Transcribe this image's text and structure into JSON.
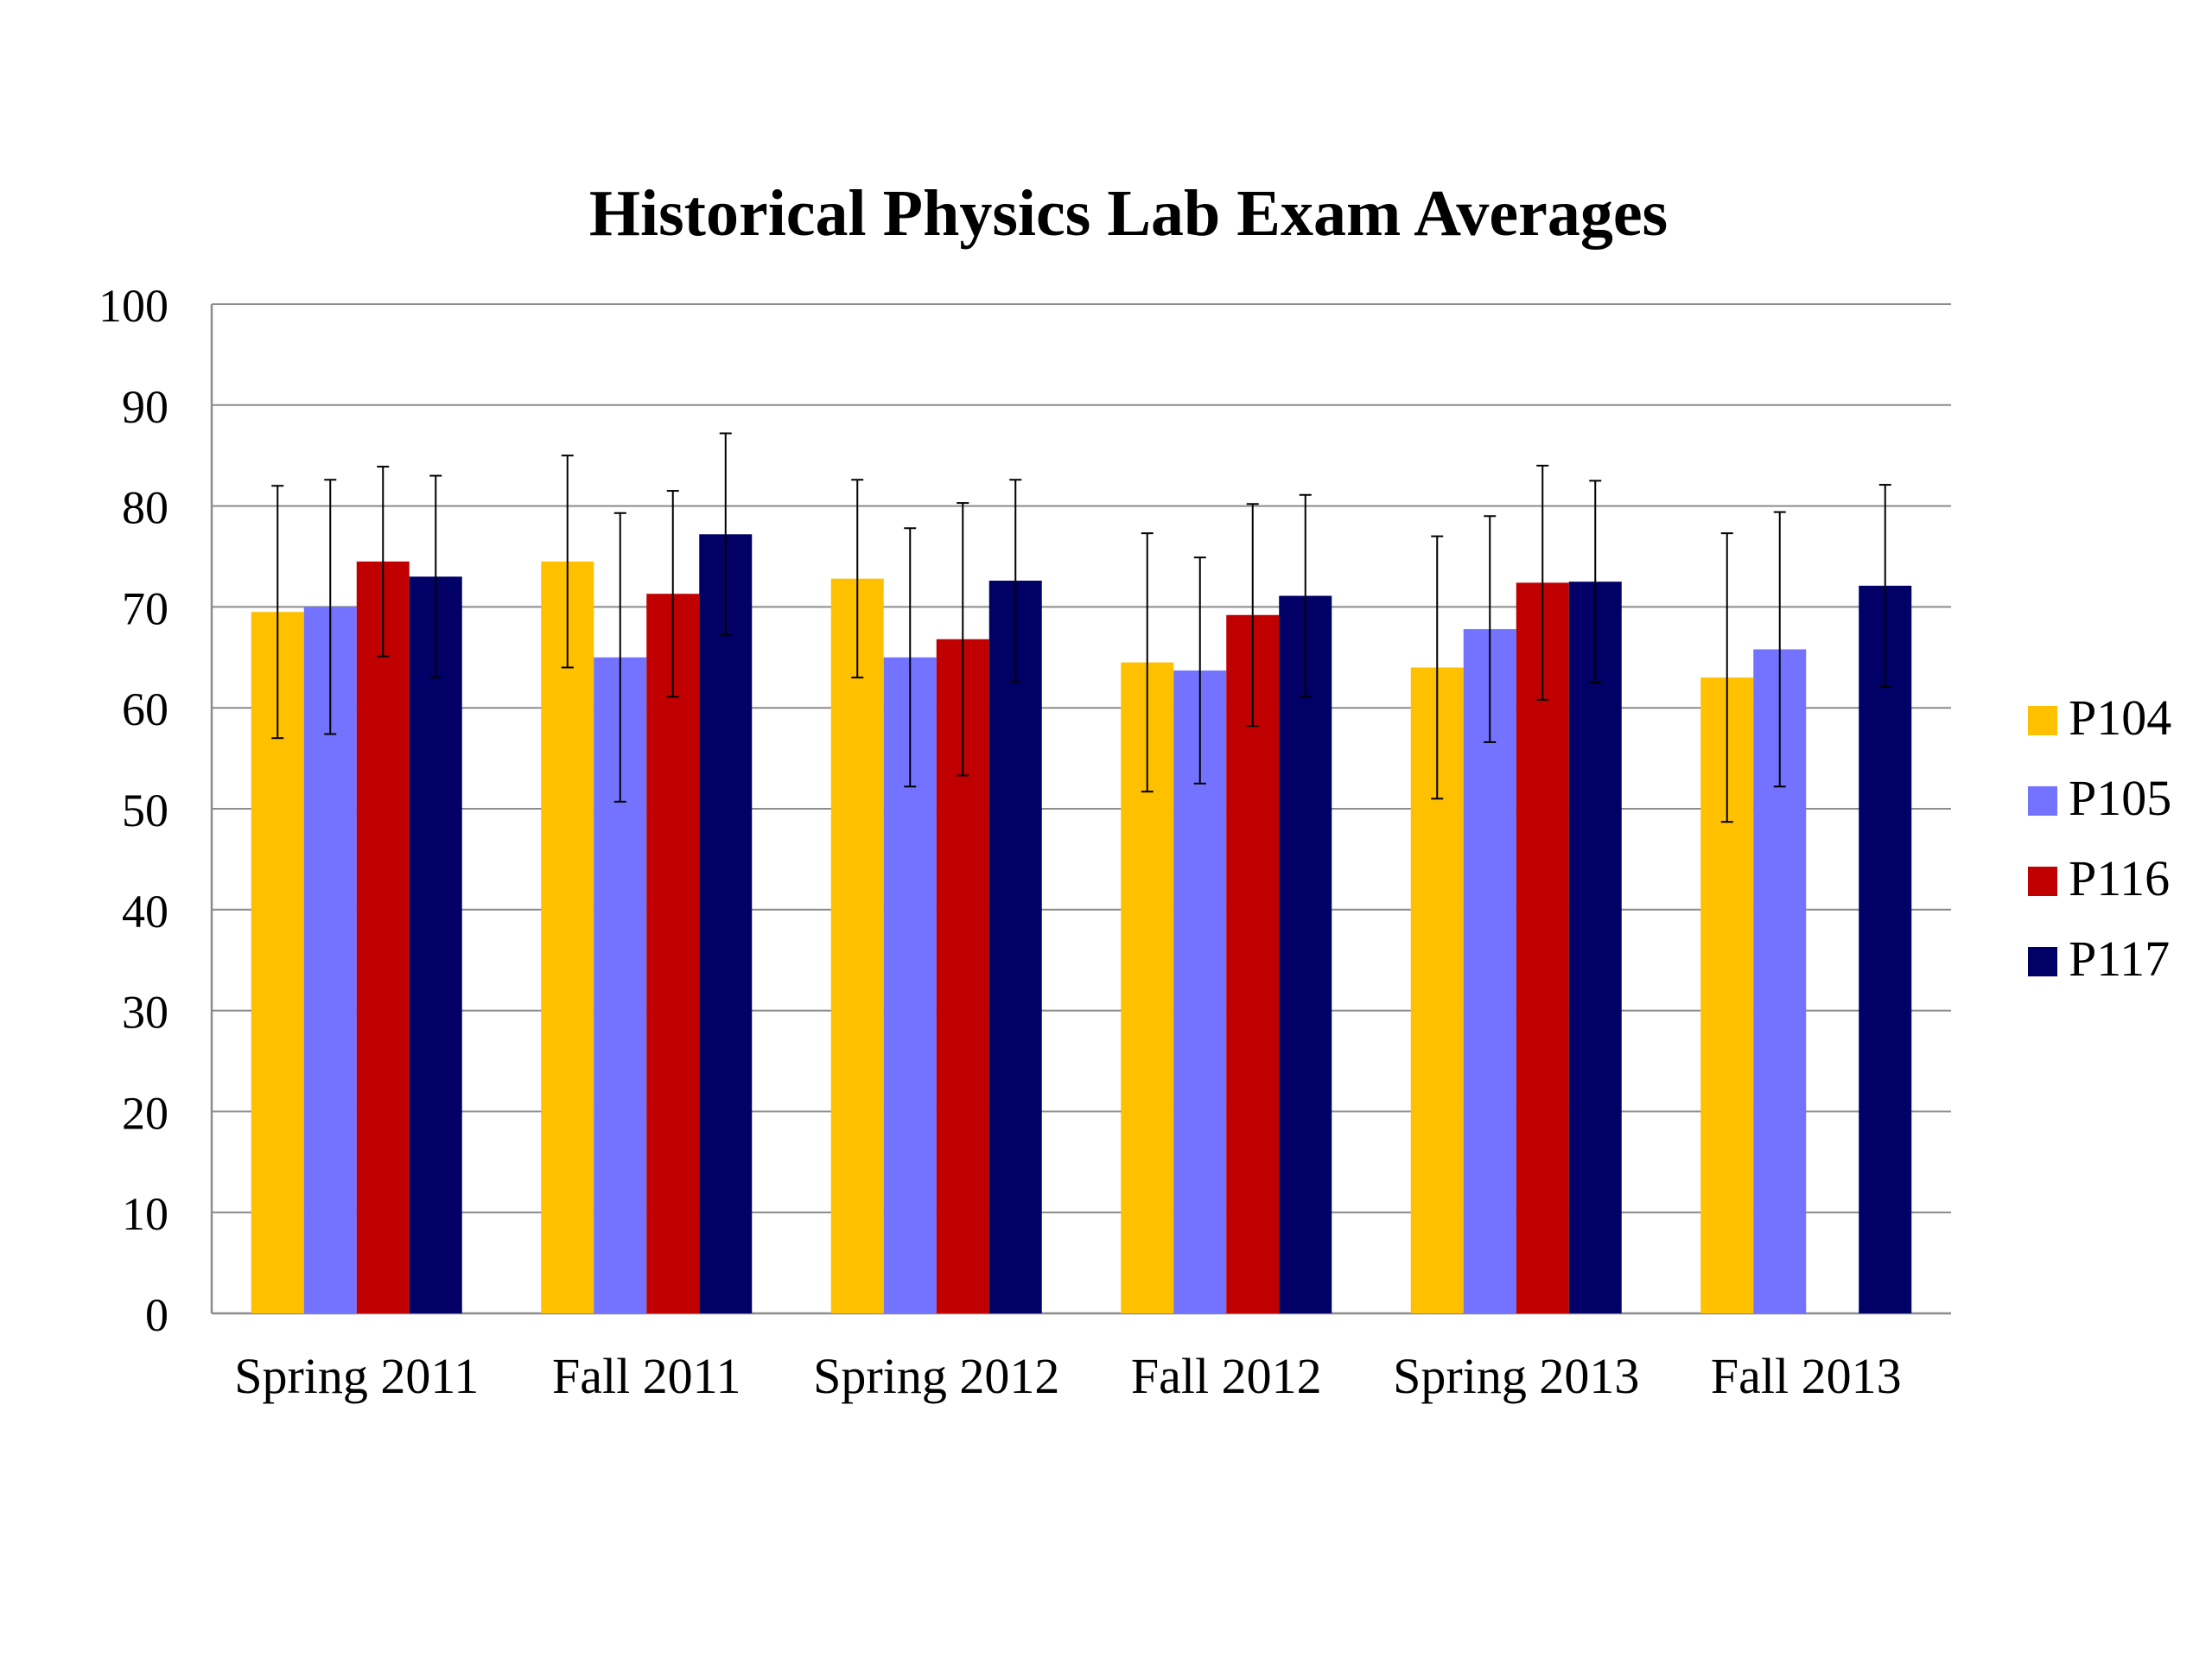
{
  "chart_data": {
    "type": "bar",
    "title": "Historical Physics Lab Exam Averages",
    "xlabel": "",
    "ylabel": "",
    "ylim": [
      0,
      100
    ],
    "yticks": [
      0,
      10,
      20,
      30,
      40,
      50,
      60,
      70,
      80,
      90,
      100
    ],
    "grid": true,
    "legend_position": "right",
    "categories": [
      "Spring 2011",
      "Fall 2011",
      "Spring 2012",
      "Fall 2012",
      "Spring 2013",
      "Fall 2013"
    ],
    "series": [
      {
        "name": "P104",
        "color": "#FFC000",
        "values": [
          69.5,
          74.5,
          72.8,
          64.5,
          64.0,
          63.0
        ],
        "errors": [
          12.5,
          10.5,
          9.8,
          12.8,
          13.0,
          14.3
        ]
      },
      {
        "name": "P105",
        "color": "#7373FF",
        "values": [
          70.0,
          65.0,
          65.0,
          63.7,
          67.8,
          65.8
        ],
        "errors": [
          12.6,
          14.3,
          12.8,
          11.2,
          11.2,
          13.6
        ]
      },
      {
        "name": "P116",
        "color": "#C00000",
        "values": [
          74.5,
          71.3,
          66.8,
          69.2,
          72.4,
          null
        ],
        "errors": [
          9.4,
          10.2,
          13.5,
          11.0,
          11.6,
          null
        ]
      },
      {
        "name": "P117",
        "color": "#000066",
        "values": [
          73.0,
          77.2,
          72.6,
          71.1,
          72.5,
          72.1
        ],
        "errors": [
          10.0,
          10.0,
          10.0,
          10.0,
          10.0,
          10.0
        ]
      }
    ]
  }
}
